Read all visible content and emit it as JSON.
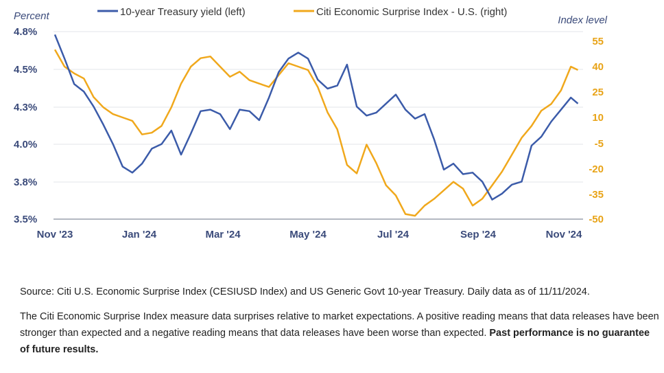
{
  "chart_data": {
    "type": "line",
    "left_axis_label": "Percent",
    "right_axis_label": "Index level",
    "x_ticks": [
      "Nov '23",
      "Jan '24",
      "Mar '24",
      "May '24",
      "Jul '24",
      "Sep '24",
      "Nov '24"
    ],
    "left_ticks": [
      "4.8%",
      "4.5%",
      "4.3%",
      "4.0%",
      "3.8%",
      "3.5%"
    ],
    "right_ticks": [
      "55",
      "40",
      "25",
      "10",
      "-5",
      "-20",
      "-35",
      "-50"
    ],
    "ylim_right": [
      -50,
      55
    ],
    "grid": true,
    "legend_position": "top",
    "series": [
      {
        "name": "10-year Treasury yield (left)",
        "axis": "left",
        "color": "#3b5ba9",
        "x": [
          "2023-11-01",
          "2023-11-08",
          "2023-11-15",
          "2023-11-22",
          "2023-11-29",
          "2023-12-06",
          "2023-12-13",
          "2023-12-20",
          "2023-12-27",
          "2024-01-03",
          "2024-01-10",
          "2024-01-17",
          "2024-01-24",
          "2024-01-31",
          "2024-02-07",
          "2024-02-14",
          "2024-02-21",
          "2024-02-28",
          "2024-03-06",
          "2024-03-13",
          "2024-03-20",
          "2024-03-27",
          "2024-04-03",
          "2024-04-10",
          "2024-04-17",
          "2024-04-24",
          "2024-05-01",
          "2024-05-08",
          "2024-05-15",
          "2024-05-22",
          "2024-05-29",
          "2024-06-05",
          "2024-06-12",
          "2024-06-19",
          "2024-06-26",
          "2024-07-03",
          "2024-07-10",
          "2024-07-17",
          "2024-07-24",
          "2024-07-31",
          "2024-08-07",
          "2024-08-14",
          "2024-08-21",
          "2024-08-28",
          "2024-09-04",
          "2024-09-11",
          "2024-09-18",
          "2024-09-25",
          "2024-10-02",
          "2024-10-09",
          "2024-10-16",
          "2024-10-23",
          "2024-10-30",
          "2024-11-06",
          "2024-11-11"
        ],
        "y": [
          4.78,
          4.62,
          4.45,
          4.4,
          4.3,
          4.18,
          4.05,
          3.9,
          3.86,
          3.92,
          4.02,
          4.05,
          4.14,
          3.98,
          4.12,
          4.27,
          4.28,
          4.25,
          4.15,
          4.28,
          4.27,
          4.21,
          4.36,
          4.53,
          4.62,
          4.66,
          4.62,
          4.48,
          4.42,
          4.44,
          4.58,
          4.3,
          4.24,
          4.26,
          4.32,
          4.38,
          4.28,
          4.22,
          4.25,
          4.08,
          3.88,
          3.92,
          3.85,
          3.86,
          3.8,
          3.68,
          3.72,
          3.78,
          3.8,
          4.04,
          4.1,
          4.2,
          4.28,
          4.36,
          4.32
        ]
      },
      {
        "name": "Citi Economic Surprise Index - U.S. (right)",
        "axis": "right",
        "color": "#f0a81c",
        "x": [
          "2023-11-01",
          "2023-11-08",
          "2023-11-15",
          "2023-11-22",
          "2023-11-29",
          "2023-12-06",
          "2023-12-13",
          "2023-12-20",
          "2023-12-27",
          "2024-01-03",
          "2024-01-10",
          "2024-01-17",
          "2024-01-24",
          "2024-01-31",
          "2024-02-07",
          "2024-02-14",
          "2024-02-21",
          "2024-02-28",
          "2024-03-06",
          "2024-03-13",
          "2024-03-20",
          "2024-03-27",
          "2024-04-03",
          "2024-04-10",
          "2024-04-17",
          "2024-04-24",
          "2024-05-01",
          "2024-05-08",
          "2024-05-15",
          "2024-05-22",
          "2024-05-29",
          "2024-06-05",
          "2024-06-12",
          "2024-06-19",
          "2024-06-26",
          "2024-07-03",
          "2024-07-10",
          "2024-07-17",
          "2024-07-24",
          "2024-07-31",
          "2024-08-07",
          "2024-08-14",
          "2024-08-21",
          "2024-08-28",
          "2024-09-04",
          "2024-09-11",
          "2024-09-18",
          "2024-09-25",
          "2024-10-02",
          "2024-10-09",
          "2024-10-16",
          "2024-10-23",
          "2024-10-30",
          "2024-11-06",
          "2024-11-11"
        ],
        "y": [
          50,
          40,
          36,
          33,
          22,
          16,
          12,
          10,
          8,
          0,
          1,
          5,
          16,
          30,
          40,
          45,
          46,
          40,
          34,
          37,
          32,
          30,
          28,
          35,
          42,
          40,
          38,
          28,
          13,
          3,
          -18,
          -23,
          -6,
          -17,
          -30,
          -36,
          -47,
          -48,
          -42,
          -38,
          -33,
          -28,
          -32,
          -42,
          -38,
          -30,
          -22,
          -12,
          -2,
          5,
          14,
          18,
          26,
          40,
          38
        ]
      }
    ]
  },
  "notes": {
    "source": "Source: Citi U.S. Economic Surprise Index (CESIUSD Index) and US Generic Govt 10-year Treasury. Daily data as of 11/11/2024.",
    "description": "The Citi Economic Surprise Index measure data surprises relative to market expectations. A positive reading means that data releases have been stronger than expected and a negative reading means that data releases have been worse than expected.",
    "disclaimer": "Past performance is no guarantee of future results."
  }
}
